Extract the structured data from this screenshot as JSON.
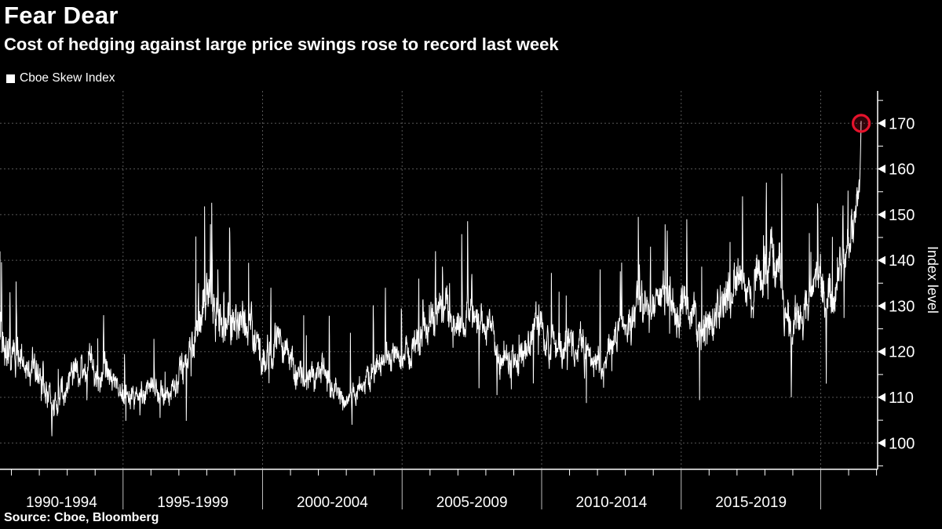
{
  "header": {
    "title": "Fear Dear",
    "subtitle": "Cost of hedging against large price swings rose to record last week"
  },
  "legend": {
    "label": "Cboe Skew Index",
    "marker_color": "#ffffff"
  },
  "source": {
    "text": "Source: Cboe, Bloomberg"
  },
  "colors": {
    "background": "#000000",
    "text": "#ffffff",
    "grid": "#565656",
    "axis": "#ffffff",
    "series": "#ffffff",
    "separator": "#bdbdbd",
    "highlight_ring": "#e6132c"
  },
  "chart_data": {
    "type": "line",
    "title": "Fear Dear",
    "subtitle": "Cost of hedging against large price swings rose to record last week",
    "series_name": "Cboe Skew Index",
    "ylabel": "Index level",
    "ylim": [
      95,
      175
    ],
    "yticks": [
      100,
      110,
      120,
      130,
      140,
      150,
      160,
      170
    ],
    "yticks_minor": [
      95,
      105,
      115,
      125,
      135,
      145,
      155,
      165,
      175
    ],
    "x_period_labels": [
      "1990-1994",
      "1995-1999",
      "2000-2004",
      "2005-2009",
      "2010-2014",
      "2015-2019"
    ],
    "x_range_years": [
      1990.55,
      2021.45
    ],
    "grid_years": [
      1995,
      2000,
      2005,
      2010,
      2015,
      2020
    ],
    "grid": true,
    "legend_position": "top-left",
    "anchors": {
      "t": [
        1990.55,
        1991.0,
        1991.5,
        1992.0,
        1992.5,
        1993.0,
        1993.5,
        1994.0,
        1994.5,
        1995.0,
        1995.5,
        1996.0,
        1996.5,
        1997.0,
        1997.5,
        1998.0,
        1998.5,
        1999.0,
        1999.5,
        2000.0,
        2000.5,
        2001.0,
        2001.5,
        2002.0,
        2002.5,
        2003.0,
        2003.5,
        2004.0,
        2004.5,
        2005.0,
        2005.5,
        2006.0,
        2006.5,
        2007.0,
        2007.5,
        2008.0,
        2008.5,
        2009.0,
        2009.5,
        2010.0,
        2010.5,
        2011.0,
        2011.5,
        2012.0,
        2012.5,
        2013.0,
        2013.5,
        2014.0,
        2014.5,
        2015.0,
        2015.5,
        2016.0,
        2016.5,
        2017.0,
        2017.5,
        2018.0,
        2018.5,
        2018.9,
        2019.25,
        2019.6,
        2019.95,
        2020.2,
        2020.5,
        2020.8,
        2021.0,
        2021.2,
        2021.35,
        2021.45
      ],
      "level": [
        124,
        121,
        115,
        117,
        107,
        114,
        117,
        114,
        116,
        111,
        110,
        112,
        110,
        114,
        120,
        130,
        127,
        128,
        126,
        120,
        123,
        118,
        114,
        115,
        112,
        109,
        112,
        116,
        119,
        117,
        121,
        126,
        130,
        126,
        130,
        124,
        120,
        117,
        123,
        126,
        120,
        123,
        119,
        117,
        121,
        126,
        131,
        129,
        133,
        130,
        126,
        124,
        130,
        136,
        134,
        139,
        140,
        122,
        126,
        131,
        140,
        128,
        133,
        141,
        143,
        147,
        152,
        166
      ],
      "vol": [
        9,
        8,
        7,
        8,
        6,
        6,
        6,
        6,
        6,
        5,
        5,
        5,
        5,
        6,
        8,
        10,
        9,
        8,
        8,
        7,
        7,
        7,
        6,
        6,
        6,
        5,
        5,
        6,
        6,
        6,
        7,
        8,
        8,
        8,
        8,
        7,
        7,
        6,
        7,
        7,
        7,
        7,
        7,
        6,
        7,
        7,
        8,
        8,
        9,
        9,
        8,
        8,
        9,
        9,
        9,
        10,
        11,
        9,
        8,
        8,
        9,
        9,
        9,
        9,
        9,
        8,
        7,
        4
      ]
    },
    "notable_points": [
      [
        1990.95,
        133
      ],
      [
        1992.45,
        101.5
      ],
      [
        1994.3,
        128
      ],
      [
        1997.7,
        135
      ],
      [
        1998.4,
        138
      ],
      [
        1998.82,
        146
      ],
      [
        1999.6,
        131
      ],
      [
        2000.3,
        134
      ],
      [
        2003.2,
        104
      ],
      [
        2004.4,
        134
      ],
      [
        2005.6,
        136
      ],
      [
        2006.2,
        142
      ],
      [
        2006.7,
        135
      ],
      [
        2007.5,
        137
      ],
      [
        2008.4,
        110.5
      ],
      [
        2009.8,
        131
      ],
      [
        2012.1,
        138
      ],
      [
        2013.9,
        143
      ],
      [
        2014.5,
        146.5
      ],
      [
        2015.2,
        149
      ],
      [
        2016.75,
        144
      ],
      [
        2017.2,
        154
      ],
      [
        2018.05,
        157
      ],
      [
        2018.6,
        159
      ],
      [
        2018.95,
        110
      ],
      [
        2019.9,
        151
      ],
      [
        2020.2,
        113
      ],
      [
        2020.8,
        152
      ],
      [
        2021.1,
        150
      ],
      [
        2021.3,
        156
      ]
    ],
    "last_point": {
      "t": 2021.45,
      "value": 170.5,
      "highlighted": true
    },
    "record_value": 170.5
  }
}
